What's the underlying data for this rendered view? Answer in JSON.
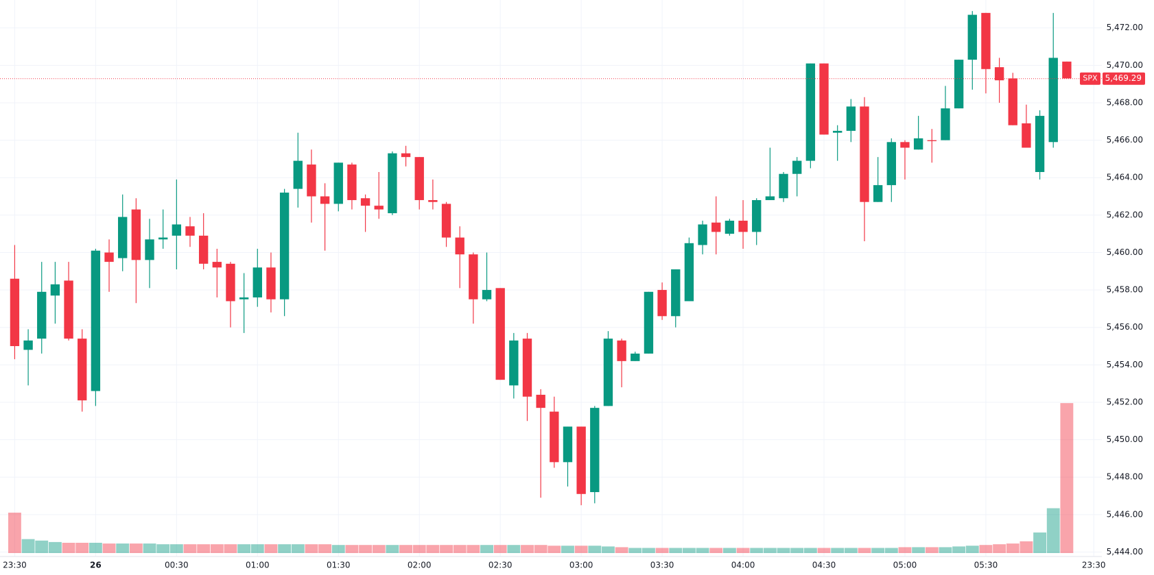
{
  "chart_data": {
    "type": "candlestick",
    "open": [
      5458.6,
      5454.8,
      5455.4,
      5457.7,
      5458.5,
      5455.4,
      5452.6,
      5460.0,
      5459.7,
      5462.3,
      5459.6,
      5460.7,
      5460.9,
      5461.4,
      5460.9,
      5459.5,
      5459.4,
      5457.5,
      5457.6,
      5459.2,
      5457.5,
      5463.4,
      5464.7,
      5463.0,
      5462.6,
      5464.7,
      5462.9,
      5462.5,
      5462.1,
      5465.3,
      5465.1,
      5462.8,
      5462.6,
      5460.8,
      5459.9,
      5457.5,
      5458.1,
      5452.9,
      5455.4,
      5452.4,
      5451.5,
      5448.8,
      5450.7,
      5447.2,
      5451.8,
      5455.3,
      5454.2,
      5454.6,
      5458.0,
      5456.6,
      5457.4,
      5460.4,
      5461.6,
      5461.0,
      5461.7,
      5461.1,
      5462.8,
      5462.9,
      5464.2,
      5464.9,
      5470.1,
      5466.4,
      5466.5,
      5467.8,
      5462.7,
      5463.6,
      5465.9,
      5465.5,
      5466.0,
      5466.0,
      5467.7,
      5470.3,
      5472.8,
      5469.9,
      5469.3,
      5466.9,
      5464.3,
      5465.9,
      5470.2
    ],
    "high": [
      5460.4,
      5455.9,
      5459.5,
      5459.5,
      5459.5,
      5455.9,
      5460.2,
      5460.7,
      5463.1,
      5462.9,
      5461.8,
      5462.3,
      5463.9,
      5461.9,
      5462.1,
      5460.2,
      5459.5,
      5458.9,
      5460.2,
      5460.0,
      5463.4,
      5466.4,
      5465.5,
      5463.7,
      5464.8,
      5464.8,
      5463.1,
      5464.3,
      5465.4,
      5465.7,
      5465.1,
      5463.9,
      5462.7,
      5461.4,
      5460.0,
      5460.0,
      5458.1,
      5455.7,
      5455.7,
      5452.7,
      5452.3,
      5450.7,
      5450.7,
      5451.8,
      5455.8,
      5455.4,
      5454.7,
      5457.9,
      5458.4,
      5459.1,
      5460.8,
      5461.7,
      5463.0,
      5461.8,
      5462.8,
      5462.9,
      5465.6,
      5464.3,
      5465.1,
      5470.1,
      5470.1,
      5466.8,
      5468.2,
      5468.3,
      5465.1,
      5466.1,
      5466.0,
      5467.3,
      5466.6,
      5468.9,
      5470.3,
      5472.9,
      5472.8,
      5470.4,
      5469.6,
      5467.9,
      5467.6,
      5472.8,
      5470.2
    ],
    "low": [
      5454.3,
      5452.9,
      5454.6,
      5456.2,
      5455.3,
      5451.5,
      5451.8,
      5457.9,
      5459.0,
      5457.3,
      5458.1,
      5460.2,
      5459.1,
      5460.3,
      5459.1,
      5457.6,
      5456.0,
      5455.7,
      5457.1,
      5456.8,
      5456.6,
      5462.4,
      5461.6,
      5460.1,
      5462.2,
      5462.3,
      5461.1,
      5461.8,
      5462.0,
      5464.6,
      5462.3,
      5462.3,
      5460.3,
      5458.1,
      5456.2,
      5457.4,
      5453.2,
      5452.2,
      5451.0,
      5446.9,
      5448.5,
      5447.5,
      5446.5,
      5446.6,
      5451.8,
      5452.8,
      5454.2,
      5454.6,
      5456.4,
      5456.0,
      5457.4,
      5459.9,
      5459.9,
      5460.9,
      5460.2,
      5460.4,
      5462.8,
      5462.7,
      5463.0,
      5464.5,
      5466.3,
      5464.9,
      5465.9,
      5460.6,
      5462.7,
      5462.7,
      5463.9,
      5465.5,
      5464.8,
      5466.0,
      5467.7,
      5468.7,
      5468.5,
      5468.0,
      5466.8,
      5465.6,
      5463.9,
      5465.6,
      5469.3
    ],
    "close": [
      5455.0,
      5455.3,
      5457.9,
      5458.3,
      5455.4,
      5452.1,
      5460.1,
      5459.5,
      5461.9,
      5459.6,
      5460.7,
      5460.8,
      5461.5,
      5460.9,
      5459.4,
      5459.2,
      5457.4,
      5457.6,
      5459.2,
      5457.5,
      5463.2,
      5464.9,
      5463.0,
      5462.6,
      5464.8,
      5462.8,
      5462.5,
      5462.3,
      5465.3,
      5465.1,
      5462.8,
      5462.7,
      5460.8,
      5459.9,
      5457.5,
      5458.0,
      5453.2,
      5455.3,
      5452.3,
      5451.7,
      5448.8,
      5450.7,
      5447.1,
      5451.7,
      5455.4,
      5454.2,
      5454.6,
      5457.9,
      5456.6,
      5459.1,
      5460.5,
      5461.5,
      5461.1,
      5461.7,
      5461.1,
      5462.8,
      5463.0,
      5464.2,
      5464.9,
      5470.1,
      5466.3,
      5466.5,
      5467.8,
      5462.7,
      5463.6,
      5465.9,
      5465.6,
      5466.1,
      5465.95,
      5467.7,
      5470.3,
      5472.7,
      5469.8,
      5469.2,
      5466.8,
      5465.6,
      5467.3,
      5470.4,
      5469.3
    ],
    "volume": [
      55,
      19,
      17,
      15,
      14,
      14,
      14,
      13,
      13,
      13,
      13,
      12,
      12,
      12,
      12,
      12,
      12,
      12,
      12,
      12,
      12,
      12,
      12,
      12,
      11,
      11,
      11,
      11,
      11,
      11,
      11,
      11,
      11,
      11,
      11,
      11,
      11,
      11,
      11,
      11,
      10,
      10,
      10,
      10,
      9,
      8,
      7,
      7,
      7,
      7,
      7,
      7,
      7,
      7,
      7,
      7,
      7,
      7,
      7,
      7,
      7,
      7,
      7,
      7,
      7,
      7,
      8,
      8,
      8,
      8,
      9,
      10,
      11,
      12,
      13,
      16,
      28,
      61,
      204
    ],
    "up_color": "#089981",
    "down_color": "#f23645",
    "ylim": [
      5443.76,
      5473.49
    ],
    "yticks": [
      {
        "value": 5444,
        "label": "5,444.00"
      },
      {
        "value": 5446,
        "label": "5,446.00"
      },
      {
        "value": 5448,
        "label": "5,448.00"
      },
      {
        "value": 5450,
        "label": "5,450.00"
      },
      {
        "value": 5452,
        "label": "5,452.00"
      },
      {
        "value": 5454,
        "label": "5,454.00"
      },
      {
        "value": 5456,
        "label": "5,456.00"
      },
      {
        "value": 5458,
        "label": "5,458.00"
      },
      {
        "value": 5460,
        "label": "5,460.00"
      },
      {
        "value": 5462,
        "label": "5,462.00"
      },
      {
        "value": 5464,
        "label": "5,464.00"
      },
      {
        "value": 5466,
        "label": "5,466.00"
      },
      {
        "value": 5468,
        "label": "5,468.00"
      },
      {
        "value": 5470,
        "label": "5,470.00"
      },
      {
        "value": 5472,
        "label": "5,472.00"
      }
    ],
    "xlim": [
      -1.09,
      80.6
    ],
    "xticks": [
      {
        "value": 0,
        "label": "23:30"
      },
      {
        "value": 6,
        "label": "26"
      },
      {
        "value": 12,
        "label": "00:30"
      },
      {
        "value": 18,
        "label": "01:00"
      },
      {
        "value": 24,
        "label": "01:30"
      },
      {
        "value": 30,
        "label": "02:00"
      },
      {
        "value": 36,
        "label": "02:30"
      },
      {
        "value": 42,
        "label": "03:00"
      },
      {
        "value": 48,
        "label": "03:30"
      },
      {
        "value": 54,
        "label": "04:00"
      },
      {
        "value": 60,
        "label": "04:30"
      },
      {
        "value": 66,
        "label": "05:00"
      },
      {
        "value": 72,
        "label": "05:30"
      },
      {
        "value": 80,
        "label": "23:30"
      }
    ],
    "grid": true,
    "last_price": {
      "symbol": "SPX",
      "value": 5469.29,
      "value_label": "5,469.29"
    }
  }
}
